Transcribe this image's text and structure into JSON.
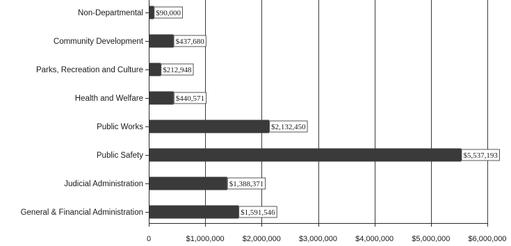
{
  "chart_data": {
    "type": "bar",
    "orientation": "horizontal",
    "categories": [
      "Non-Departmental",
      "Community Development",
      "Parks, Recreation and Culture",
      "Health and Welfare",
      "Public Works",
      "Public Safety",
      "Judicial Administration",
      "General & Financial Administration"
    ],
    "values": [
      90000,
      437680,
      212948,
      440571,
      2132450,
      5537193,
      1388371,
      1591546
    ],
    "data_labels": [
      "$90,000",
      "$437,680",
      "$212,948",
      "$440,571",
      "$2,132,450",
      "$5,537,193",
      "$1,388,371",
      "$1,591,546"
    ],
    "x_ticks": [
      0,
      1000000,
      2000000,
      3000000,
      4000000,
      5000000,
      6000000
    ],
    "x_tick_labels": [
      "0",
      "$1,000,000",
      "$2,000,000",
      "$3,000,000",
      "$4,000,000",
      "$5,000,000",
      "$6,000,000"
    ],
    "xlim": [
      0,
      6000000
    ],
    "grid": true,
    "colors": {
      "bar": "#3a3a3a",
      "grid": "#3a3a3a",
      "text": "#1a1a1a"
    }
  }
}
